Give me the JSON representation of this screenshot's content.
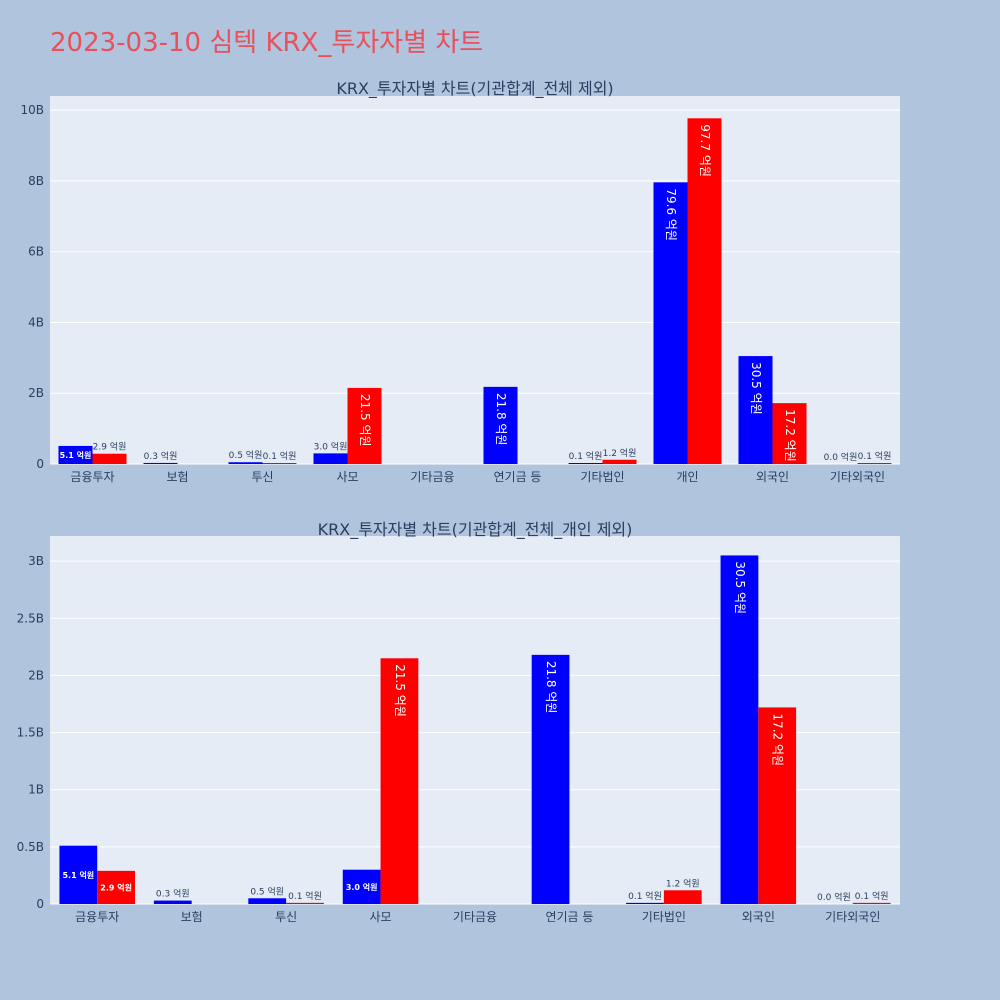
{
  "page": {
    "title": "2023-03-10 심텍 KRX_투자자별 차트"
  },
  "colors": {
    "buy": "#0000ff",
    "sell": "#ff0000",
    "plot_bg": "#e5ecf6",
    "paper_bg": "#b0c4de",
    "grid": "#ffffff",
    "text": "#2a3f5f"
  },
  "chart_data": [
    {
      "type": "bar",
      "title": "KRX_투자자별 차트(기관합계_전체 제외)",
      "categories": [
        "금융투자",
        "보험",
        "투신",
        "사모",
        "기타금융",
        "연기금 등",
        "기타법인",
        "개인",
        "외국인",
        "기타외국인"
      ],
      "series": [
        {
          "color": "#0000ff",
          "values": [
            0.51,
            0.03,
            0.05,
            0.3,
            0.0,
            2.18,
            0.01,
            7.96,
            3.05,
            0.0
          ],
          "labels": [
            "5.1 억원",
            "0.3 억원",
            "0.5 억원",
            "3.0 억원",
            "",
            "21.8 억원",
            "0.1 억원",
            "79.6 억원",
            "30.5 억원",
            "0.0 억원"
          ]
        },
        {
          "color": "#ff0000",
          "values": [
            0.29,
            0.0,
            0.01,
            2.15,
            0.0,
            0.0,
            0.12,
            9.77,
            1.72,
            0.01
          ],
          "labels": [
            "2.9 억원",
            "",
            "0.1 억원",
            "21.5 억원",
            "",
            "",
            "1.2 억원",
            "97.7 억원",
            "17.2 억원",
            "0.1 억원"
          ]
        }
      ],
      "yticks": [
        0,
        2,
        4,
        6,
        8,
        10
      ],
      "ytick_labels": [
        "0",
        "2B",
        "4B",
        "6B",
        "8B",
        "10B"
      ],
      "ylim": [
        0,
        10.4
      ],
      "grid": true
    },
    {
      "type": "bar",
      "title": "KRX_투자자별 차트(기관합계_전체_개인 제외)",
      "categories": [
        "금융투자",
        "보험",
        "투신",
        "사모",
        "기타금융",
        "연기금 등",
        "기타법인",
        "외국인",
        "기타외국인"
      ],
      "series": [
        {
          "color": "#0000ff",
          "values": [
            0.51,
            0.03,
            0.05,
            0.3,
            0.0,
            2.18,
            0.01,
            3.05,
            0.0
          ],
          "labels": [
            "5.1 억원",
            "0.3 억원",
            "0.5 억원",
            "3.0 억원",
            "",
            "21.8 억원",
            "0.1 억원",
            "30.5 억원",
            "0.0 억원"
          ]
        },
        {
          "color": "#ff0000",
          "values": [
            0.29,
            0.0,
            0.01,
            2.15,
            0.0,
            0.0,
            0.12,
            1.72,
            0.01
          ],
          "labels": [
            "2.9 억원",
            "",
            "0.1 억원",
            "21.5 억원",
            "",
            "",
            "1.2 억원",
            "17.2 억원",
            "0.1 억원"
          ]
        }
      ],
      "yticks": [
        0,
        0.5,
        1,
        1.5,
        2,
        2.5,
        3
      ],
      "ytick_labels": [
        "0",
        "0.5B",
        "1B",
        "1.5B",
        "2B",
        "2.5B",
        "3B"
      ],
      "ylim": [
        0,
        3.22
      ],
      "grid": true
    }
  ]
}
